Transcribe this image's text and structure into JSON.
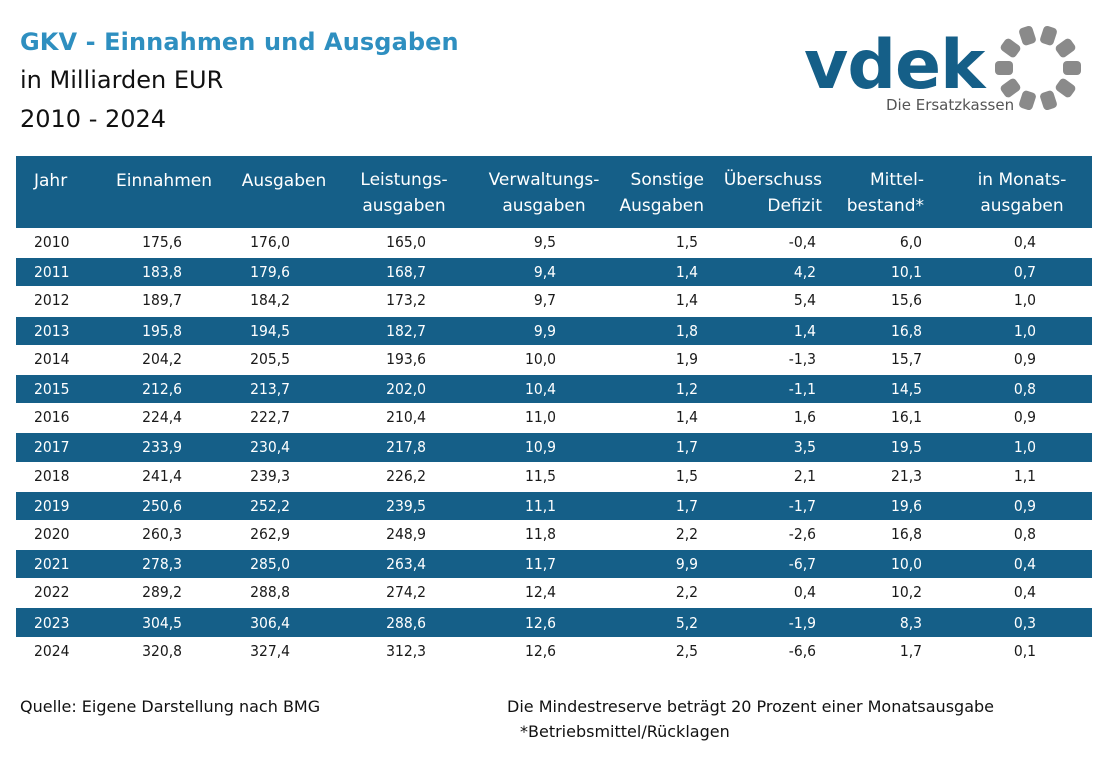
{
  "header": {
    "title": "GKV - Einnahmen und Ausgaben",
    "subtitle": "in Milliarden EUR",
    "years": "2010 - 2024"
  },
  "logo": {
    "wordmark": "vdek",
    "tagline": "Die Ersatzkassen",
    "brand_color": "#155f88",
    "accent_gray": "#8a8a8a"
  },
  "table": {
    "header_color": "#155f88",
    "columns": [
      {
        "line1": "Jahr",
        "line2": ""
      },
      {
        "line1": "Einnahmen",
        "line2": ""
      },
      {
        "line1": "Ausgaben",
        "line2": ""
      },
      {
        "line1": "Leistungs-",
        "line2": "ausgaben"
      },
      {
        "line1": "Verwaltungs-",
        "line2": "ausgaben"
      },
      {
        "line1": "Sonstige",
        "line2": "Ausgaben"
      },
      {
        "line1": "Überschuss",
        "line2": "Defizit"
      },
      {
        "line1": "Mittel-",
        "line2": "bestand*"
      },
      {
        "line1": "in Monats-",
        "line2": "ausgaben"
      }
    ],
    "rows": [
      [
        "2010",
        "175,6",
        "176,0",
        "165,0",
        "9,5",
        "1,5",
        "-0,4",
        "6,0",
        "0,4"
      ],
      [
        "2011",
        "183,8",
        "179,6",
        "168,7",
        "9,4",
        "1,4",
        "4,2",
        "10,1",
        "0,7"
      ],
      [
        "2012",
        "189,7",
        "184,2",
        "173,2",
        "9,7",
        "1,4",
        "5,4",
        "15,6",
        "1,0"
      ],
      [
        "2013",
        "195,8",
        "194,5",
        "182,7",
        "9,9",
        "1,8",
        "1,4",
        "16,8",
        "1,0"
      ],
      [
        "2014",
        "204,2",
        "205,5",
        "193,6",
        "10,0",
        "1,9",
        "-1,3",
        "15,7",
        "0,9"
      ],
      [
        "2015",
        "212,6",
        "213,7",
        "202,0",
        "10,4",
        "1,2",
        "-1,1",
        "14,5",
        "0,8"
      ],
      [
        "2016",
        "224,4",
        "222,7",
        "210,4",
        "11,0",
        "1,4",
        "1,6",
        "16,1",
        "0,9"
      ],
      [
        "2017",
        "233,9",
        "230,4",
        "217,8",
        "10,9",
        "1,7",
        "3,5",
        "19,5",
        "1,0"
      ],
      [
        "2018",
        "241,4",
        "239,3",
        "226,2",
        "11,5",
        "1,5",
        "2,1",
        "21,3",
        "1,1"
      ],
      [
        "2019",
        "250,6",
        "252,2",
        "239,5",
        "11,1",
        "1,7",
        "-1,7",
        "19,6",
        "0,9"
      ],
      [
        "2020",
        "260,3",
        "262,9",
        "248,9",
        "11,8",
        "2,2",
        "-2,6",
        "16,8",
        "0,8"
      ],
      [
        "2021",
        "278,3",
        "285,0",
        "263,4",
        "11,7",
        "9,9",
        "-6,7",
        "10,0",
        "0,4"
      ],
      [
        "2022",
        "289,2",
        "288,8",
        "274,2",
        "12,4",
        "2,2",
        "0,4",
        "10,2",
        "0,4"
      ],
      [
        "2023",
        "304,5",
        "306,4",
        "288,6",
        "12,6",
        "5,2",
        "-1,9",
        "8,3",
        "0,3"
      ],
      [
        "2024",
        "320,8",
        "327,4",
        "312,3",
        "12,6",
        "2,5",
        "-6,6",
        "1,7",
        "0,1"
      ]
    ]
  },
  "footer": {
    "source": "Quelle: Eigene Darstellung nach BMG",
    "reserve_note": "Die Mindestreserve beträgt 20 Prozent einer Monatsausgabe",
    "asterisk_note": "*Betriebsmittel/Rücklagen"
  }
}
